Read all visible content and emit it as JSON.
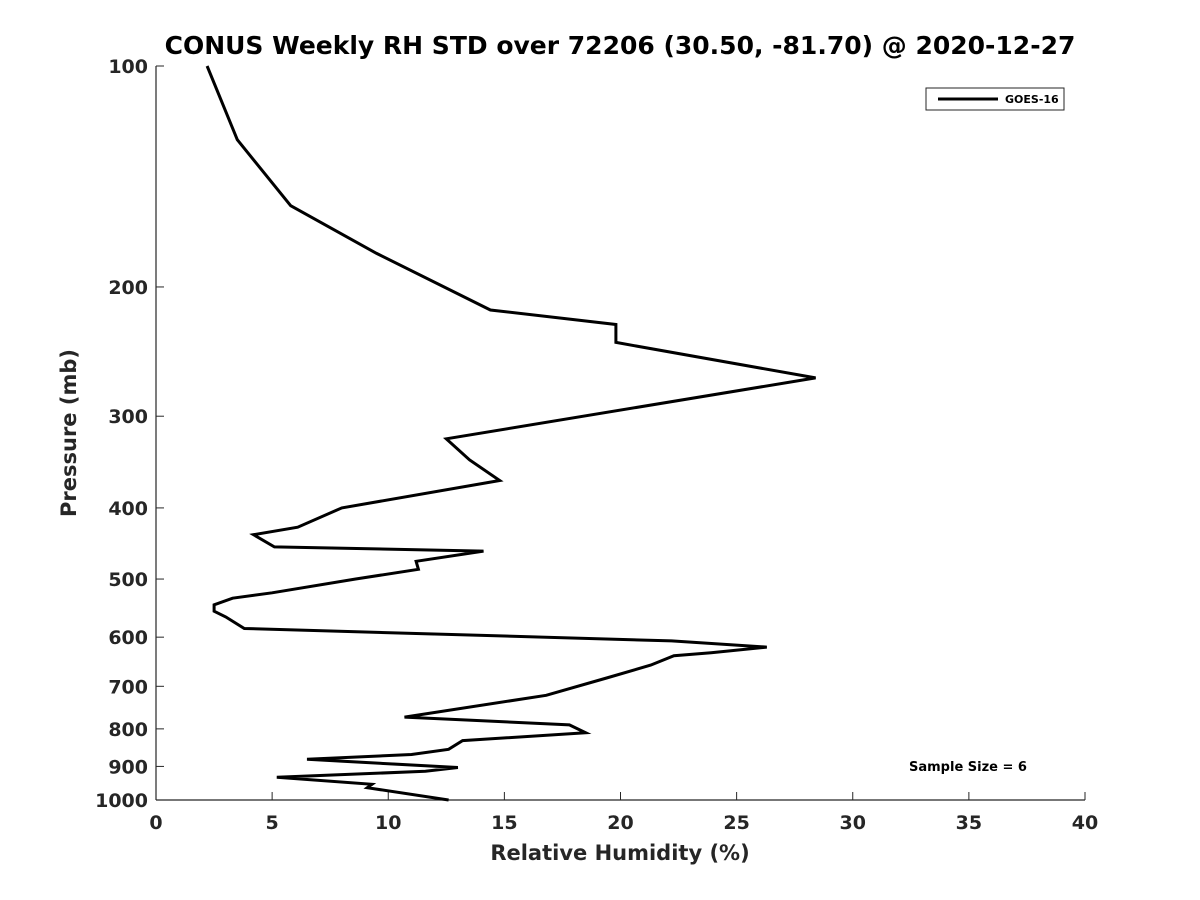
{
  "chart_data": {
    "type": "line",
    "title": "CONUS Weekly RH STD over 72206 (30.50, -81.70) @ 2020-12-27",
    "xlabel": "Relative Humidity (%)",
    "ylabel": "Pressure (mb)",
    "xlim": [
      0,
      40
    ],
    "ylim": [
      100,
      1000
    ],
    "y_scale": "log",
    "y_reversed": true,
    "x_ticks": [
      0,
      5,
      10,
      15,
      20,
      25,
      30,
      35,
      40
    ],
    "y_ticks": [
      100,
      200,
      300,
      400,
      500,
      600,
      700,
      800,
      900,
      1000
    ],
    "grid": false,
    "legend_position": "top-right",
    "series": [
      {
        "name": "GOES-16",
        "color": "#000000",
        "x": [
          2.2,
          3.5,
          5.8,
          9.5,
          14.4,
          19.8,
          19.8,
          28.4,
          12.5,
          13.5,
          14.8,
          8.0,
          6.1,
          4.2,
          5.1,
          14.1,
          11.2,
          11.3,
          8.6,
          5.0,
          3.3,
          2.5,
          2.5,
          3.0,
          3.8,
          22.2,
          26.3,
          23.9,
          22.3,
          21.3,
          19.4,
          16.8,
          10.7,
          17.8,
          18.5,
          13.2,
          12.6,
          11.0,
          6.5,
          13.0,
          11.6,
          5.2,
          9.3,
          9.1,
          12.6
        ],
        "y": [
          100,
          126,
          155,
          180,
          215,
          225,
          238,
          266,
          322,
          344,
          367,
          400,
          425,
          435,
          452,
          458,
          473,
          485,
          500,
          522,
          531,
          542,
          553,
          563,
          584,
          607,
          619,
          630,
          636,
          655,
          682,
          720,
          771,
          790,
          810,
          830,
          853,
          867,
          880,
          903,
          914,
          931,
          952,
          962,
          1000
        ]
      }
    ],
    "annotations": [
      "Sample Size = 6"
    ]
  }
}
